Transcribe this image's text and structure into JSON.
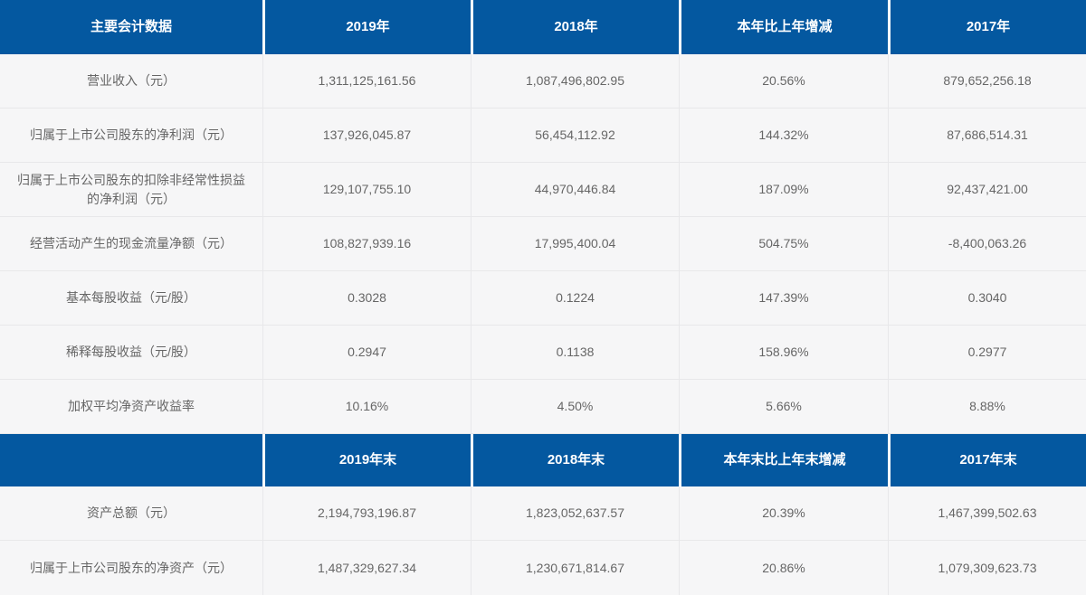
{
  "colors": {
    "header_bg": "#0458A0",
    "header_text": "#FFFFFF",
    "row_bg": "#F6F6F7",
    "row_border": "#E8E8EA",
    "body_text": "#666666"
  },
  "table": {
    "header1": {
      "c0": "主要会计数据",
      "c1": "2019年",
      "c2": "2018年",
      "c3": "本年比上年增减",
      "c4": "2017年"
    },
    "rows1": [
      {
        "label": "营业收入（元）",
        "y2019": "1,311,125,161.56",
        "y2018": "1,087,496,802.95",
        "change": "20.56%",
        "y2017": "879,652,256.18"
      },
      {
        "label": "归属于上市公司股东的净利润（元）",
        "y2019": "137,926,045.87",
        "y2018": "56,454,112.92",
        "change": "144.32%",
        "y2017": "87,686,514.31"
      },
      {
        "label": "归属于上市公司股东的扣除非经常性损益的净利润（元）",
        "y2019": "129,107,755.10",
        "y2018": "44,970,446.84",
        "change": "187.09%",
        "y2017": "92,437,421.00"
      },
      {
        "label": "经营活动产生的现金流量净额（元）",
        "y2019": "108,827,939.16",
        "y2018": "17,995,400.04",
        "change": "504.75%",
        "y2017": "-8,400,063.26"
      },
      {
        "label": "基本每股收益（元/股）",
        "y2019": "0.3028",
        "y2018": "0.1224",
        "change": "147.39%",
        "y2017": "0.3040"
      },
      {
        "label": "稀释每股收益（元/股）",
        "y2019": "0.2947",
        "y2018": "0.1138",
        "change": "158.96%",
        "y2017": "0.2977"
      },
      {
        "label": "加权平均净资产收益率",
        "y2019": "10.16%",
        "y2018": "4.50%",
        "change": "5.66%",
        "y2017": "8.88%"
      }
    ],
    "header2": {
      "c0": "",
      "c1": "2019年末",
      "c2": "2018年末",
      "c3": "本年末比上年末增减",
      "c4": "2017年末"
    },
    "rows2": [
      {
        "label": "资产总额（元）",
        "y2019": "2,194,793,196.87",
        "y2018": "1,823,052,637.57",
        "change": "20.39%",
        "y2017": "1,467,399,502.63"
      },
      {
        "label": "归属于上市公司股东的净资产（元）",
        "y2019": "1,487,329,627.34",
        "y2018": "1,230,671,814.67",
        "change": "20.86%",
        "y2017": "1,079,309,623.73"
      }
    ]
  }
}
